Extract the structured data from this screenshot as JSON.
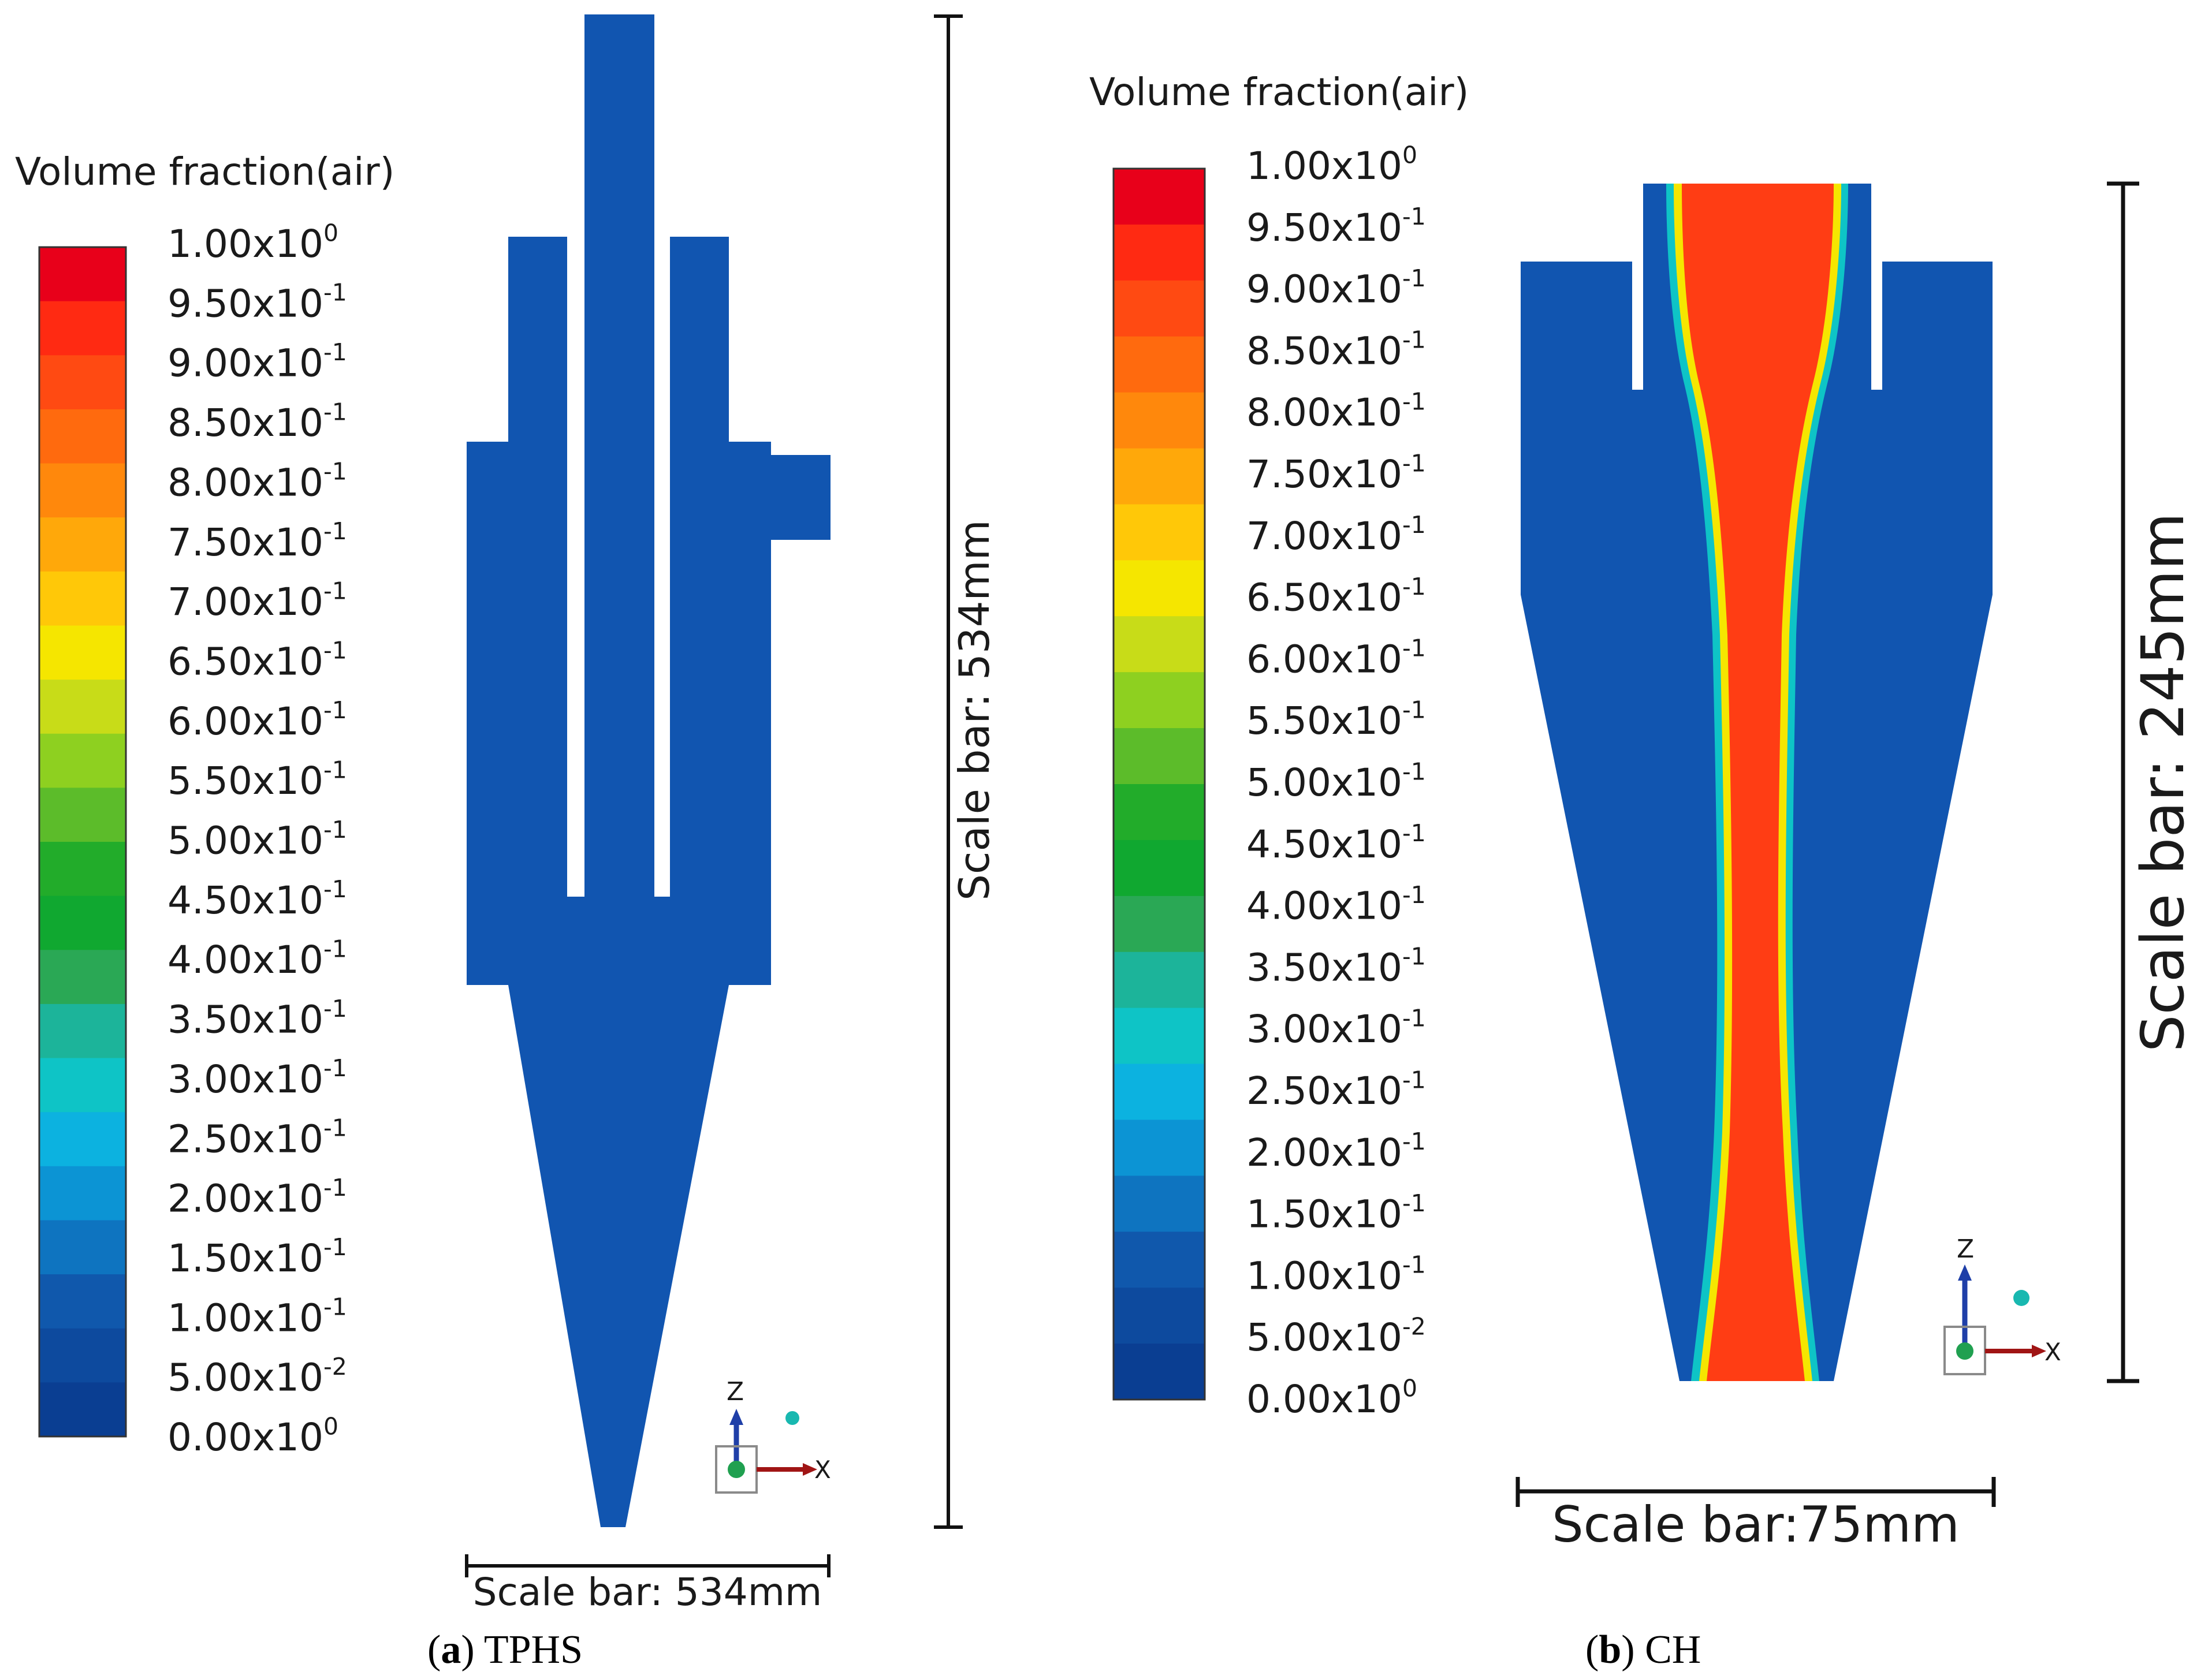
{
  "colors": {
    "fluid_blue": "#1155b0",
    "air_core": "#ff3d14",
    "scale_bar": "#111111",
    "axis_z": "#1f3fa8",
    "axis_x": "#a01515",
    "axis_dot": "#20a050",
    "axis_dot2": "#18b8b0"
  },
  "colormap": {
    "bands": [
      "#e8001a",
      "#ff2a12",
      "#ff4a12",
      "#ff6a0e",
      "#ff880c",
      "#ffa80a",
      "#ffc808",
      "#f5e600",
      "#c8dc18",
      "#8ed020",
      "#5cbc2a",
      "#22ac2a",
      "#10a830",
      "#2aa855",
      "#1cb49a",
      "#0ec4c6",
      "#0cb2e0",
      "#0c94d4",
      "#0e74c0",
      "#1058ac",
      "#0d4a9e",
      "#0a3e92"
    ],
    "tick_labels": [
      {
        "mant": "1.00",
        "exp": "0"
      },
      {
        "mant": "9.50",
        "exp": "-1"
      },
      {
        "mant": "9.00",
        "exp": "-1"
      },
      {
        "mant": "8.50",
        "exp": "-1"
      },
      {
        "mant": "8.00",
        "exp": "-1"
      },
      {
        "mant": "7.50",
        "exp": "-1"
      },
      {
        "mant": "7.00",
        "exp": "-1"
      },
      {
        "mant": "6.50",
        "exp": "-1"
      },
      {
        "mant": "6.00",
        "exp": "-1"
      },
      {
        "mant": "5.50",
        "exp": "-1"
      },
      {
        "mant": "5.00",
        "exp": "-1"
      },
      {
        "mant": "4.50",
        "exp": "-1"
      },
      {
        "mant": "4.00",
        "exp": "-1"
      },
      {
        "mant": "3.50",
        "exp": "-1"
      },
      {
        "mant": "3.00",
        "exp": "-1"
      },
      {
        "mant": "2.50",
        "exp": "-1"
      },
      {
        "mant": "2.00",
        "exp": "-1"
      },
      {
        "mant": "1.50",
        "exp": "-1"
      },
      {
        "mant": "1.00",
        "exp": "-1"
      },
      {
        "mant": "5.00",
        "exp": "-2"
      },
      {
        "mant": "0.00",
        "exp": "0"
      }
    ]
  },
  "panel_a": {
    "legend_title": "Volume fraction(air)",
    "vertical_scale_label": "Scale bar: 534mm",
    "horizontal_scale_label": "Scale bar: 534mm",
    "caption_letter": "a",
    "caption_text": " TPHS",
    "axis_z_label": "Z",
    "axis_x_label": "X"
  },
  "panel_b": {
    "legend_title": "Volume fraction(air)",
    "vertical_scale_label": "Scale bar: 245mm",
    "horizontal_scale_label": "Scale bar:75mm",
    "caption_letter": "b",
    "caption_text": " CH",
    "axis_z_label": "Z",
    "axis_x_label": "X"
  }
}
